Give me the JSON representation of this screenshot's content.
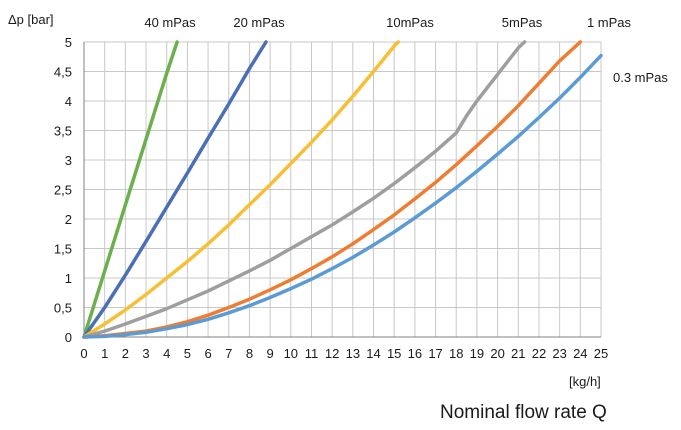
{
  "chart_data": {
    "type": "line",
    "title": "",
    "ylabel": "Δp [bar]",
    "xlabel": "[kg/h]",
    "footer_title": "Nominal flow rate Q",
    "xlim": [
      0,
      25
    ],
    "ylim": [
      0,
      5
    ],
    "x_ticks": [
      "0",
      "1",
      "2",
      "3",
      "4",
      "5",
      "6",
      "7",
      "8",
      "9",
      "10",
      "11",
      "12",
      "13",
      "14",
      "15",
      "16",
      "17",
      "18",
      "19",
      "20",
      "21",
      "22",
      "23",
      "24",
      "25"
    ],
    "y_ticks": [
      "0",
      "0,5",
      "1",
      "1,5",
      "2",
      "2,5",
      "3",
      "3,5",
      "4",
      "4,5",
      "5"
    ],
    "grid": true,
    "series": [
      {
        "name": "40 mPas",
        "color": "#6ab04c",
        "points": [
          [
            0,
            0
          ],
          [
            1,
            1.12
          ],
          [
            2,
            2.24
          ],
          [
            3,
            3.35
          ],
          [
            4,
            4.47
          ],
          [
            4.5,
            5.0
          ]
        ]
      },
      {
        "name": "20 mPas",
        "color": "#4a6fb5",
        "points": [
          [
            0,
            0
          ],
          [
            1,
            0.5
          ],
          [
            2,
            1.05
          ],
          [
            3,
            1.62
          ],
          [
            4,
            2.2
          ],
          [
            5,
            2.78
          ],
          [
            6,
            3.37
          ],
          [
            7,
            3.95
          ],
          [
            8,
            4.55
          ],
          [
            8.8,
            5.0
          ]
        ]
      },
      {
        "name": "10mPas",
        "color": "#f7bf33",
        "points": [
          [
            0,
            0
          ],
          [
            1,
            0.22
          ],
          [
            2,
            0.46
          ],
          [
            3,
            0.72
          ],
          [
            4,
            1.0
          ],
          [
            5,
            1.28
          ],
          [
            6,
            1.58
          ],
          [
            7,
            1.9
          ],
          [
            8,
            2.24
          ],
          [
            9,
            2.58
          ],
          [
            10,
            2.94
          ],
          [
            11,
            3.3
          ],
          [
            12,
            3.68
          ],
          [
            13,
            4.08
          ],
          [
            14,
            4.5
          ],
          [
            15,
            4.93
          ],
          [
            15.2,
            5.0
          ]
        ]
      },
      {
        "name": "5mPas",
        "color": "#9e9e9e",
        "points": [
          [
            0,
            0
          ],
          [
            1,
            0.1
          ],
          [
            2,
            0.22
          ],
          [
            3,
            0.35
          ],
          [
            4,
            0.48
          ],
          [
            5,
            0.63
          ],
          [
            6,
            0.78
          ],
          [
            7,
            0.95
          ],
          [
            8,
            1.12
          ],
          [
            9,
            1.3
          ],
          [
            10,
            1.5
          ],
          [
            11,
            1.7
          ],
          [
            12,
            1.9
          ],
          [
            13,
            2.12
          ],
          [
            14,
            2.35
          ],
          [
            15,
            2.6
          ],
          [
            16,
            2.87
          ],
          [
            17,
            3.15
          ],
          [
            18,
            3.46
          ],
          [
            18.5,
            3.75
          ],
          [
            19,
            4.0
          ],
          [
            20,
            4.45
          ],
          [
            21,
            4.9
          ],
          [
            21.3,
            5.0
          ]
        ]
      },
      {
        "name": "1 mPas",
        "color": "#ef7d31",
        "points": [
          [
            0,
            0
          ],
          [
            1,
            0.02
          ],
          [
            2,
            0.06
          ],
          [
            3,
            0.1
          ],
          [
            4,
            0.17
          ],
          [
            5,
            0.26
          ],
          [
            6,
            0.37
          ],
          [
            7,
            0.5
          ],
          [
            8,
            0.64
          ],
          [
            9,
            0.8
          ],
          [
            10,
            0.97
          ],
          [
            11,
            1.16
          ],
          [
            12,
            1.36
          ],
          [
            13,
            1.58
          ],
          [
            14,
            1.82
          ],
          [
            15,
            2.07
          ],
          [
            16,
            2.34
          ],
          [
            17,
            2.62
          ],
          [
            18,
            2.92
          ],
          [
            19,
            3.24
          ],
          [
            20,
            3.57
          ],
          [
            21,
            3.92
          ],
          [
            22,
            4.3
          ],
          [
            23,
            4.68
          ],
          [
            24,
            5.0
          ]
        ]
      },
      {
        "name": "0.3 mPas",
        "color": "#5b9bd5",
        "points": [
          [
            0,
            0
          ],
          [
            1,
            0.01
          ],
          [
            2,
            0.04
          ],
          [
            3,
            0.08
          ],
          [
            4,
            0.14
          ],
          [
            5,
            0.21
          ],
          [
            6,
            0.3
          ],
          [
            7,
            0.41
          ],
          [
            8,
            0.53
          ],
          [
            9,
            0.67
          ],
          [
            10,
            0.82
          ],
          [
            11,
            0.98
          ],
          [
            12,
            1.16
          ],
          [
            13,
            1.35
          ],
          [
            14,
            1.56
          ],
          [
            15,
            1.78
          ],
          [
            16,
            2.02
          ],
          [
            17,
            2.27
          ],
          [
            18,
            2.53
          ],
          [
            19,
            2.81
          ],
          [
            20,
            3.1
          ],
          [
            21,
            3.4
          ],
          [
            22,
            3.72
          ],
          [
            23,
            4.05
          ],
          [
            24,
            4.4
          ],
          [
            25,
            4.77
          ]
        ]
      }
    ]
  }
}
